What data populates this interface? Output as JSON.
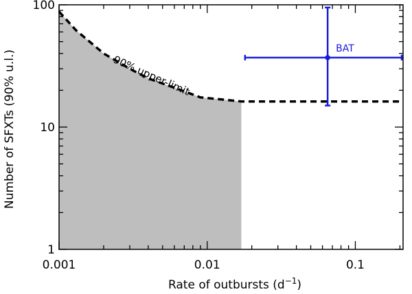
{
  "chart_data": {
    "type": "line",
    "xlabel": "Rate of outbursts (d",
    "xlabel_sup": "−1",
    "xlabel_close": ")",
    "ylabel": "Number of SFXTs (90% u.l.)",
    "x_scale": "log",
    "y_scale": "log",
    "xlim": [
      0.001,
      0.21
    ],
    "ylim": [
      1,
      100
    ],
    "x_ticks": [
      {
        "value": 0.001,
        "label": "0.001"
      },
      {
        "value": 0.01,
        "label": "0.01"
      },
      {
        "value": 0.1,
        "label": "0.1"
      }
    ],
    "y_ticks": [
      {
        "value": 1,
        "label": "1"
      },
      {
        "value": 10,
        "label": "10"
      },
      {
        "value": 100,
        "label": "100"
      }
    ],
    "grid": false,
    "series": [
      {
        "style": "dashed",
        "color": "#000000",
        "x": [
          0.001,
          0.0013,
          0.002,
          0.003,
          0.004,
          0.006,
          0.009,
          0.017,
          0.21
        ],
        "y": [
          88,
          62,
          40,
          30,
          25,
          21,
          17.5,
          16.2,
          16.2
        ]
      }
    ],
    "shaded_region": {
      "color": "#bebebe",
      "x_max": 0.017
    },
    "annotations": [
      {
        "text": "90% upper-limit",
        "x": 0.0023,
        "y": 34,
        "angle": 24
      }
    ],
    "error_point": {
      "label": "BAT",
      "color": "#1a1adc",
      "x": 0.065,
      "y": 37,
      "x_err": [
        0.018,
        0.21
      ],
      "y_err": [
        15,
        95
      ]
    }
  }
}
